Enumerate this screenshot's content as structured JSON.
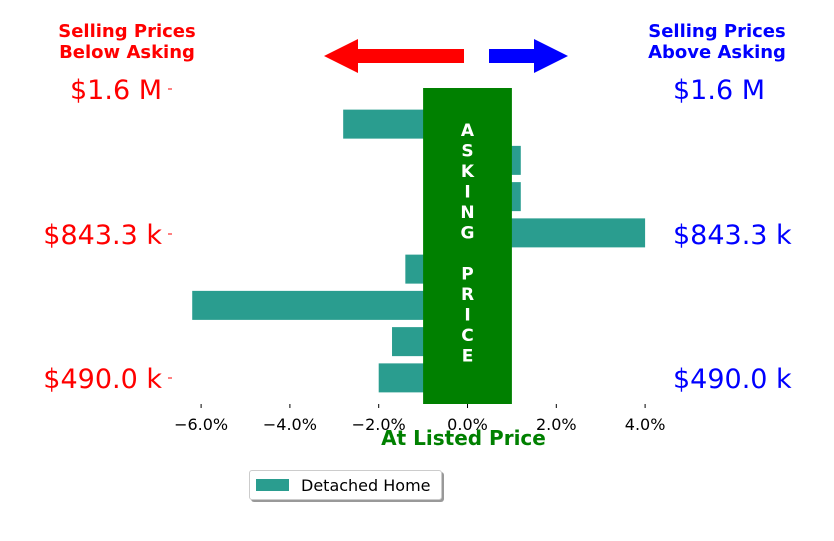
{
  "colors": {
    "below": "#ff0000",
    "above": "#0000ff",
    "bar": "#2a9d8f",
    "asking": "#008000"
  },
  "headers": {
    "below_line1": "Selling Prices",
    "below_line2": "Below Asking",
    "above_line1": "Selling Prices",
    "above_line2": "Above Asking"
  },
  "icons": {
    "left": "arrow-left-icon",
    "right": "arrow-right-icon"
  },
  "chart_data": {
    "type": "bar",
    "orientation": "horizontal",
    "series": [
      {
        "name": "Detached Home",
        "values": [
          -2.8,
          1.2,
          1.2,
          4.0,
          -1.4,
          -6.2,
          -1.7,
          -2.0
        ]
      }
    ],
    "xlabel": "At Listed Price",
    "xlim": [
      -6.6,
      4.4
    ],
    "xticks": [
      -6.0,
      -4.0,
      -2.0,
      0.0,
      2.0,
      4.0
    ],
    "xtick_labels": [
      "−6.0%",
      "−4.0%",
      "−2.0%",
      "0.0%",
      "2.0%",
      "4.0%"
    ],
    "y_tick_labels_left": [
      "$1.6 M",
      "$843.3 k",
      "$490.0 k"
    ],
    "y_tick_labels_right": [
      "$1.6 M",
      "$843.3 k",
      "$490.0 k"
    ],
    "center_band": {
      "from": -1.0,
      "to": 1.0,
      "label": "ASKING PRICE"
    },
    "legend": {
      "entries": [
        "Detached Home"
      ],
      "placement": "bottom"
    },
    "grid": false
  }
}
